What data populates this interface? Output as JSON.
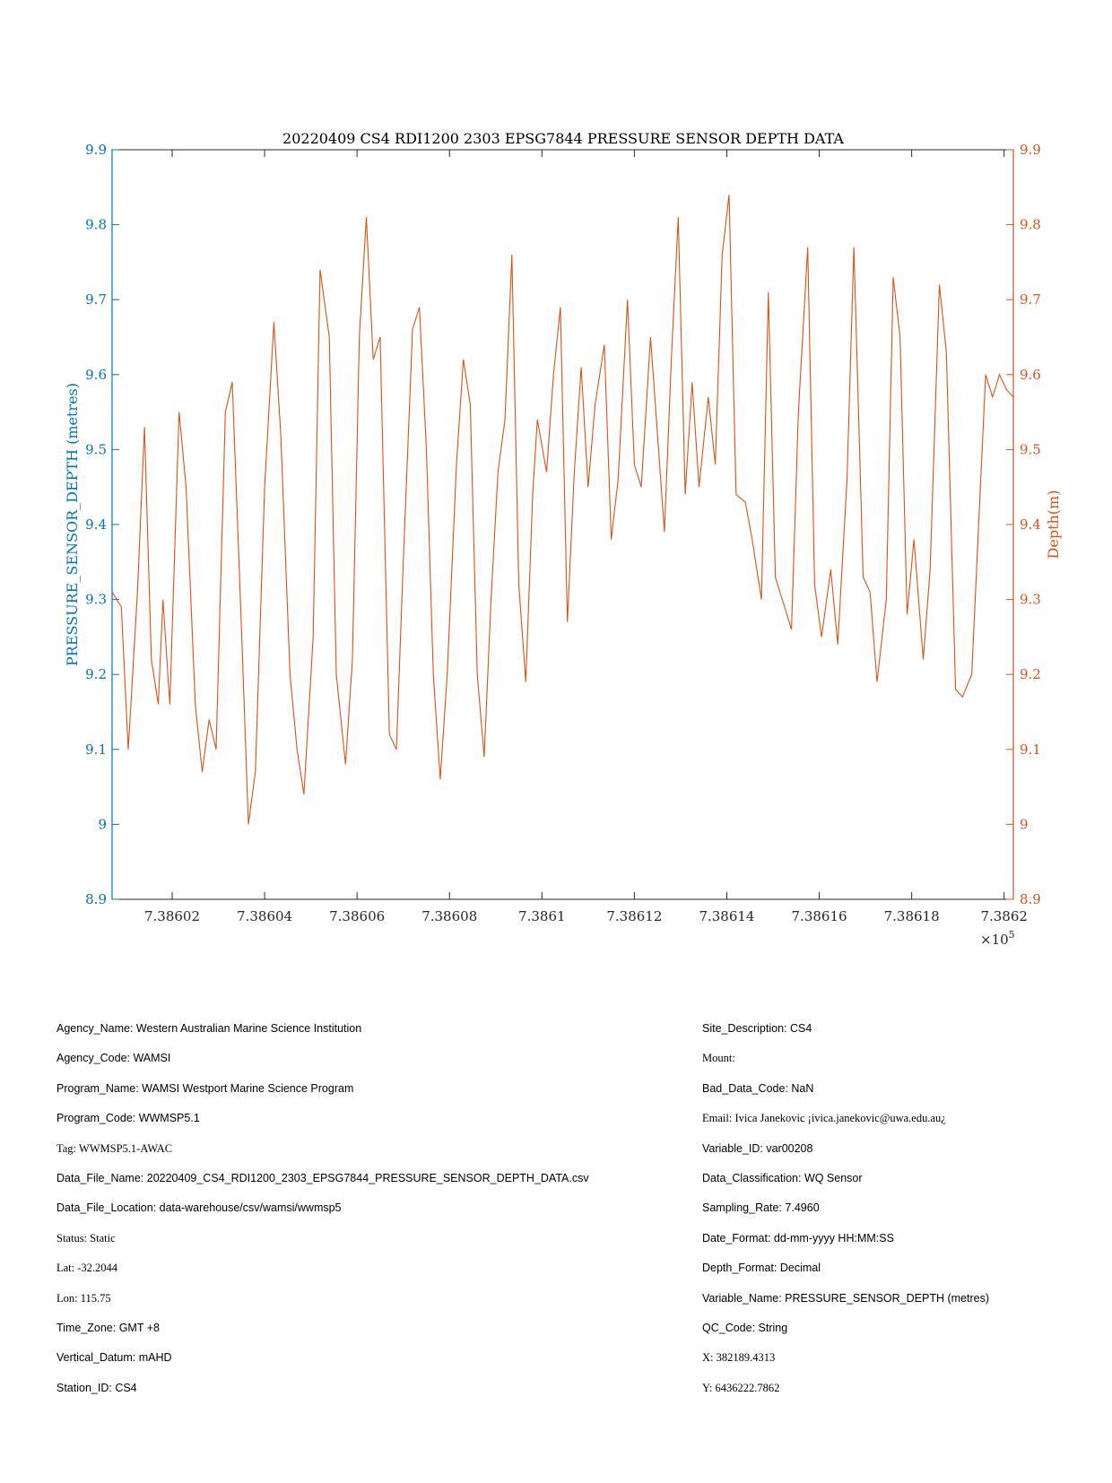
{
  "chart_data": {
    "type": "line",
    "title": "20220409 CS4 RDI1200 2303 EPSG7844 PRESSURE SENSOR DEPTH DATA",
    "ylabel_left": "PRESSURE_SENSOR_DEPTH (metres)",
    "ylabel_right": "Depth(m)",
    "xlabel": "",
    "x_multiplier": "×10",
    "x_multiplier_exp": "5",
    "xlim": [
      738600.7,
      738620.2
    ],
    "ylim": [
      8.9,
      9.9
    ],
    "yticks": [
      "8.9",
      "9",
      "9.1",
      "9.2",
      "9.3",
      "9.4",
      "9.5",
      "9.6",
      "9.7",
      "9.8",
      "9.9"
    ],
    "ytick_values": [
      8.9,
      9.0,
      9.1,
      9.2,
      9.3,
      9.4,
      9.5,
      9.6,
      9.7,
      9.8,
      9.9
    ],
    "xticks": [
      "7.38602",
      "7.38604",
      "7.38606",
      "7.38608",
      "7.3861",
      "7.38612",
      "7.38614",
      "7.38616",
      "7.38618",
      "7.3862"
    ],
    "xtick_values": [
      738602,
      738604,
      738606,
      738608,
      738610,
      738612,
      738614,
      738616,
      738618,
      738620
    ],
    "grid": false,
    "colors": {
      "left_axis": "#0072BD",
      "right_axis": "#D95319",
      "line": "#D95319"
    },
    "series": [
      {
        "x": [
          738600.7,
          738600.9,
          738601.05,
          738601.25,
          738601.4,
          738601.55,
          738601.7,
          738601.8,
          738601.95,
          738602.15,
          738602.3,
          738602.5,
          738602.65,
          738602.8,
          738602.95,
          738603.15,
          738603.3,
          738603.5,
          738603.65,
          738603.8,
          738604.0,
          738604.2,
          738604.35,
          738604.55,
          738604.7,
          738604.85,
          738605.05,
          738605.2,
          738605.4,
          738605.55,
          738605.75,
          738605.9,
          738606.05,
          738606.2,
          738606.35,
          738606.5,
          738606.7,
          738606.85,
          738607.0,
          738607.2,
          738607.35,
          738607.5,
          738607.65,
          738607.8,
          738607.95,
          738608.15,
          738608.3,
          738608.45,
          738608.6,
          738608.75,
          738608.9,
          738609.05,
          738609.2,
          738609.35,
          738609.5,
          738609.65,
          738609.8,
          738609.9,
          738610.1,
          738610.25,
          738610.4,
          738610.55,
          738610.7,
          738610.85,
          738611.0,
          738611.15,
          738611.35,
          738611.5,
          738611.65,
          738611.85,
          738612.0,
          738612.15,
          738612.35,
          738612.5,
          738612.65,
          738612.8,
          738612.95,
          738613.1,
          738613.25,
          738613.4,
          738613.6,
          738613.75,
          738613.9,
          738614.05,
          738614.2,
          738614.4,
          738614.55,
          738614.75,
          738614.9,
          738615.05,
          738615.25,
          738615.4,
          738615.55,
          738615.75,
          738615.9,
          738616.05,
          738616.25,
          738616.4,
          738616.6,
          738616.75,
          738616.95,
          738617.1,
          738617.25,
          738617.45,
          738617.6,
          738617.75,
          738617.9,
          738618.05,
          738618.25,
          738618.4,
          738618.6,
          738618.75,
          738618.95,
          738619.1,
          738619.3,
          738619.45,
          738619.6,
          738619.75,
          738619.9,
          738620.05,
          738620.2
        ],
        "y": [
          9.31,
          9.29,
          9.1,
          9.31,
          9.53,
          9.22,
          9.16,
          9.3,
          9.16,
          9.55,
          9.45,
          9.16,
          9.07,
          9.14,
          9.1,
          9.55,
          9.59,
          9.26,
          9.0,
          9.07,
          9.45,
          9.67,
          9.52,
          9.2,
          9.1,
          9.04,
          9.25,
          9.74,
          9.65,
          9.2,
          9.08,
          9.22,
          9.65,
          9.81,
          9.62,
          9.65,
          9.12,
          9.1,
          9.35,
          9.66,
          9.69,
          9.5,
          9.2,
          9.06,
          9.2,
          9.48,
          9.62,
          9.56,
          9.2,
          9.09,
          9.3,
          9.47,
          9.54,
          9.76,
          9.32,
          9.19,
          9.44,
          9.54,
          9.47,
          9.6,
          9.69,
          9.27,
          9.47,
          9.61,
          9.45,
          9.56,
          9.64,
          9.38,
          9.46,
          9.7,
          9.48,
          9.45,
          9.65,
          9.52,
          9.39,
          9.62,
          9.81,
          9.44,
          9.59,
          9.45,
          9.57,
          9.48,
          9.76,
          9.84,
          9.44,
          9.43,
          9.38,
          9.3,
          9.71,
          9.33,
          9.29,
          9.26,
          9.55,
          9.77,
          9.32,
          9.25,
          9.34,
          9.24,
          9.46,
          9.77,
          9.33,
          9.31,
          9.19,
          9.3,
          9.73,
          9.65,
          9.28,
          9.38,
          9.22,
          9.34,
          9.72,
          9.63,
          9.18,
          9.17,
          9.2,
          9.4,
          9.6,
          9.57,
          9.6,
          9.58,
          9.57
        ]
      }
    ]
  },
  "metadata": {
    "left": [
      "Agency_Name: Western Australian Marine Science Institution",
      "Agency_Code: WAMSI",
      "Program_Name: WAMSI Westport Marine Science Program",
      "Program_Code: WWMSP5.1",
      "Tag: WWMSP5.1-AWAC",
      "Data_File_Name: 20220409_CS4_RDI1200_2303_EPSG7844_PRESSURE_SENSOR_DEPTH_DATA.csv",
      "Data_File_Location: data-warehouse/csv/wamsi/wwmsp5",
      "Status: Static",
      "Lat: -32.2044",
      "Lon: 115.75",
      "Time_Zone: GMT +8",
      "Vertical_Datum: mAHD",
      "Station_ID: CS4"
    ],
    "right": [
      "Site_Description: CS4",
      "Mount:",
      "Bad_Data_Code: NaN",
      "Email: Ivica Janekovic ¡ivica.janekovic@uwa.edu.au¿",
      "Variable_ID: var00208",
      "Data_Classification: WQ Sensor",
      "Sampling_Rate: 7.4960",
      "Date_Format: dd-mm-yyyy HH:MM:SS",
      "Depth_Format: Decimal",
      "Variable_Name: PRESSURE_SENSOR_DEPTH (metres)",
      "QC_Code: String",
      "X: 382189.4313",
      "Y: 6436222.7862"
    ]
  }
}
